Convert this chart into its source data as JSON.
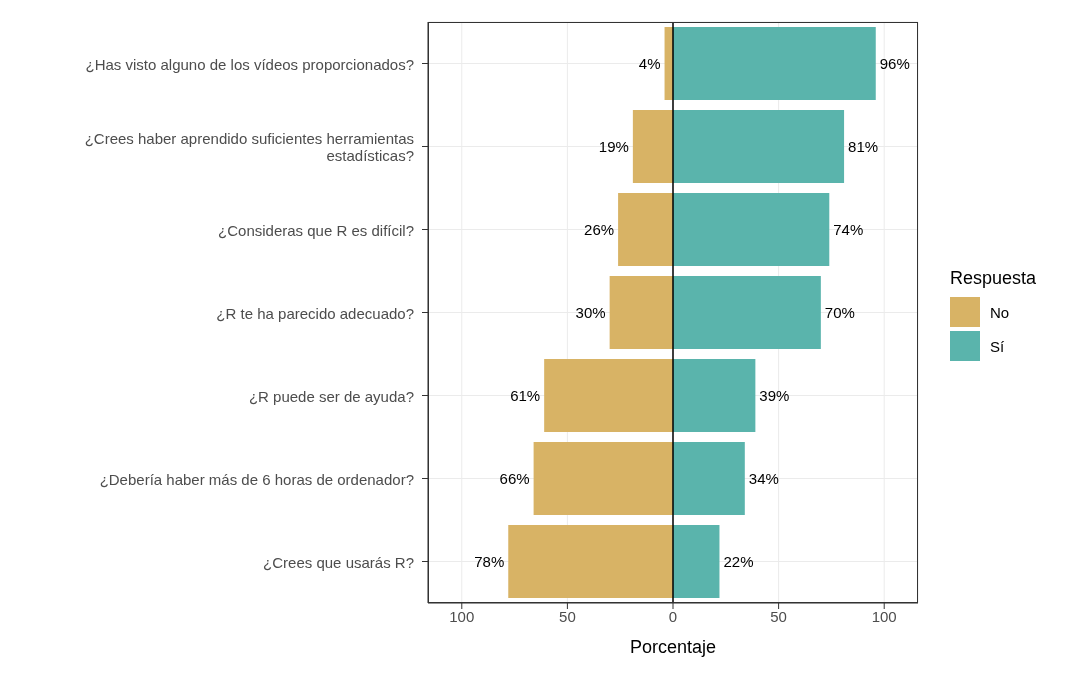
{
  "chart_data": {
    "type": "bar",
    "orientation": "horizontal",
    "categories": [
      "¿Has visto alguno de los vídeos proporcionados?",
      "¿Crees haber aprendido suficientes herramientas estadísticas?",
      "¿Consideras que R es difícil?",
      "¿R te ha parecido adecuado?",
      "¿R puede ser de ayuda?",
      "¿Debería haber más de 6 horas de ordenador?",
      "¿Crees que usarás R?"
    ],
    "series": [
      {
        "name": "No",
        "color": "#d8b365",
        "values": [
          4,
          19,
          26,
          30,
          61,
          66,
          78
        ],
        "base": [
          -4,
          -19,
          -26,
          -30,
          -61,
          -66,
          -78
        ],
        "value_labels": [
          "4%",
          "19%",
          "26%",
          "30%",
          "61%",
          "66%",
          "78%"
        ]
      },
      {
        "name": "Sí",
        "color": "#5ab4ac",
        "values": [
          96,
          81,
          74,
          70,
          39,
          34,
          22
        ],
        "value_labels": [
          "96%",
          "81%",
          "74%",
          "70%",
          "39%",
          "34%",
          "22%"
        ]
      }
    ],
    "xlim": [
      -116,
      116
    ],
    "xticks": [
      {
        "value": -100,
        "label": "100"
      },
      {
        "value": -50,
        "label": "50"
      },
      0,
      50,
      100
    ],
    "xlabel": "Porcentaje",
    "legend_title": "Respuesta",
    "legend": "right",
    "grid": true,
    "ref_lines": [
      {
        "axis": "x",
        "value": 0,
        "color": "#000000"
      }
    ]
  }
}
